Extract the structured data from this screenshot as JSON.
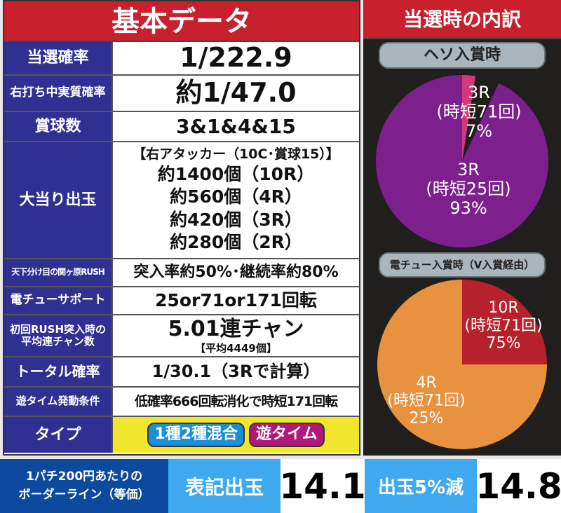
{
  "basic": {
    "title": "基本データ",
    "rows": [
      {
        "label": "当選確率",
        "value": "1/222.9"
      },
      {
        "label": "右打ち中実質確率",
        "value": "約1/47.0"
      },
      {
        "label": "賞球数",
        "value": "3&1&4&15"
      },
      {
        "label": "大当り出玉",
        "lines": [
          "【右アタッカー（10C･賞球15）】",
          "約1400個（10R）",
          "約560個（4R）",
          "約420個（3R）",
          "約280個（2R）"
        ]
      },
      {
        "label": "天下分け目の関ヶ原RUSH",
        "value": "突入率約50%･継続率約80%"
      },
      {
        "label": "電チューサポート",
        "value": "25or71or171回転"
      },
      {
        "label": "初回RUSH突入時の平均連チャン数",
        "value": "5.01連チャン",
        "sub": "【平均4449個】"
      },
      {
        "label": "トータル確率",
        "value": "1/30.1（3Rで計算）"
      },
      {
        "label": "遊タイム発動条件",
        "value": "低確率666回転消化で時短171回転"
      },
      {
        "label": "タイプ",
        "tags": [
          {
            "text": "1種2種混合",
            "color": "#1a8fd8"
          },
          {
            "text": "遊タイム",
            "color": "#b0197a"
          }
        ]
      }
    ]
  },
  "breakdown": {
    "title": "当選時の内訳"
  },
  "chart_data": [
    {
      "type": "pie",
      "title": "ヘソ入賞時",
      "slices": [
        {
          "label": "3R",
          "detail": "(時短71回)",
          "value": 7,
          "pct": "7%",
          "color": "#d2387a"
        },
        {
          "label": "3R",
          "detail": "(時短25回)",
          "value": 93,
          "pct": "93%",
          "color": "#7e1f8e"
        }
      ]
    },
    {
      "type": "pie",
      "title": "電チュー入賞時（V入賞経由）",
      "slices": [
        {
          "label": "10R",
          "detail": "(時短71回)",
          "value": 75,
          "pct": "75%",
          "color": "#b7212c"
        },
        {
          "label": "4R",
          "detail": "(時短71回)",
          "value": 25,
          "pct": "25%",
          "color": "#e8913f"
        }
      ]
    }
  ],
  "border": {
    "label1": "1パチ200円あたりの",
    "label2": "ボーダーライン（等価）",
    "col1": "表記出玉",
    "val1": "14.1",
    "col2": "出玉5%減",
    "val2": "14.8"
  }
}
